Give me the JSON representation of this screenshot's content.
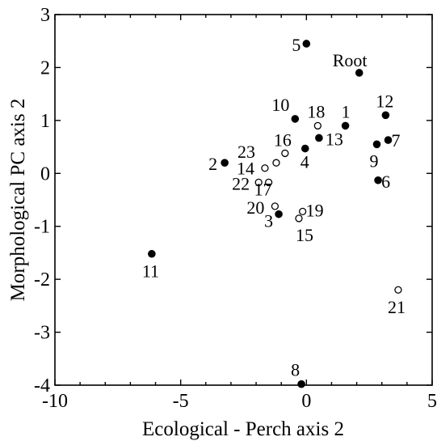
{
  "chart_data": {
    "type": "scatter",
    "title": "",
    "xlabel": "Ecological - Perch axis 2",
    "ylabel": "Morphological PC axis 2",
    "xlim": [
      -10,
      5
    ],
    "ylim": [
      -4,
      3
    ],
    "xticks": [
      -10,
      -5,
      0,
      5
    ],
    "yticks": [
      -4,
      -3,
      -2,
      -1,
      0,
      1,
      2,
      3
    ],
    "grid": false,
    "legend": "none",
    "points": [
      {
        "label": "Root",
        "x": 2.1,
        "y": 1.9,
        "marker": "filled"
      },
      {
        "label": "1",
        "x": 1.55,
        "y": 0.9,
        "marker": "filled"
      },
      {
        "label": "2",
        "x": -3.25,
        "y": 0.2,
        "marker": "filled"
      },
      {
        "label": "3",
        "x": -1.1,
        "y": -0.77,
        "marker": "filled"
      },
      {
        "label": "4",
        "x": -0.05,
        "y": 0.47,
        "marker": "filled"
      },
      {
        "label": "5",
        "x": 0.0,
        "y": 2.45,
        "marker": "filled"
      },
      {
        "label": "6",
        "x": 2.85,
        "y": -0.13,
        "marker": "filled"
      },
      {
        "label": "7",
        "x": 3.25,
        "y": 0.63,
        "marker": "filled"
      },
      {
        "label": "8",
        "x": -0.2,
        "y": -3.98,
        "marker": "filled"
      },
      {
        "label": "9",
        "x": 2.8,
        "y": 0.55,
        "marker": "filled"
      },
      {
        "label": "10",
        "x": -0.45,
        "y": 1.03,
        "marker": "filled"
      },
      {
        "label": "11",
        "x": -6.15,
        "y": -1.52,
        "marker": "filled"
      },
      {
        "label": "12",
        "x": 3.15,
        "y": 1.1,
        "marker": "filled"
      },
      {
        "label": "13",
        "x": 0.5,
        "y": 0.67,
        "marker": "filled"
      },
      {
        "label": "14",
        "x": -1.65,
        "y": 0.1,
        "marker": "open"
      },
      {
        "label": "15",
        "x": -0.3,
        "y": -0.85,
        "marker": "open"
      },
      {
        "label": "16",
        "x": -0.85,
        "y": 0.38,
        "marker": "open"
      },
      {
        "label": "17",
        "x": -1.5,
        "y": -0.17,
        "marker": "open"
      },
      {
        "label": "18",
        "x": 0.45,
        "y": 0.9,
        "marker": "open"
      },
      {
        "label": "19",
        "x": -0.15,
        "y": -0.72,
        "marker": "open"
      },
      {
        "label": "20",
        "x": -1.25,
        "y": -0.62,
        "marker": "open"
      },
      {
        "label": "21",
        "x": 3.65,
        "y": -2.2,
        "marker": "open"
      },
      {
        "label": "22",
        "x": -1.9,
        "y": -0.17,
        "marker": "open"
      },
      {
        "label": "23",
        "x": -1.2,
        "y": 0.2,
        "marker": "open"
      }
    ]
  }
}
